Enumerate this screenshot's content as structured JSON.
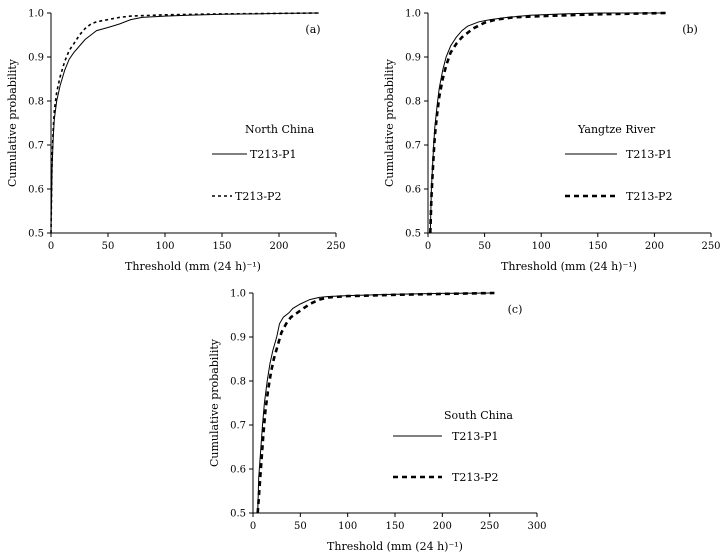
{
  "figure": {
    "panels": [
      {
        "id": "a",
        "panel_label": "(a)",
        "region": "North China",
        "xlabel": "Threshold (mm (24 h)⁻¹)",
        "ylabel": "Cumulative probability"
      },
      {
        "id": "b",
        "panel_label": "(b)",
        "region": "Yangtze River",
        "xlabel": "Threshold (mm (24 h)⁻¹)",
        "ylabel": "Cumulative probability"
      },
      {
        "id": "c",
        "panel_label": "(c)",
        "region": "South China",
        "xlabel": "Threshold (mm (24 h)⁻¹)",
        "ylabel": "Cumulative probability"
      }
    ],
    "legend": [
      {
        "key": "p1",
        "label": "T213-P1",
        "style": "solid"
      },
      {
        "key": "p2",
        "label": "T213-P2",
        "style": "dashed"
      }
    ]
  },
  "chart_data": [
    {
      "type": "line",
      "panel": "(a)",
      "title": "North China",
      "xlabel": "Threshold (mm (24 h)⁻¹)",
      "ylabel": "Cumulative probability",
      "xlim": [
        0,
        250
      ],
      "ylim": [
        0.5,
        1.0
      ],
      "xticks": [
        0,
        50,
        100,
        150,
        200,
        250
      ],
      "yticks": [
        0.5,
        0.6,
        0.7,
        0.8,
        0.9,
        1.0
      ],
      "series": [
        {
          "name": "T213-P1",
          "style": "solid",
          "points": [
            [
              0,
              0.5
            ],
            [
              0.5,
              0.58
            ],
            [
              1,
              0.65
            ],
            [
              2,
              0.72
            ],
            [
              3,
              0.76
            ],
            [
              5,
              0.8
            ],
            [
              8,
              0.835
            ],
            [
              12,
              0.87
            ],
            [
              16,
              0.895
            ],
            [
              20,
              0.91
            ],
            [
              25,
              0.925
            ],
            [
              30,
              0.94
            ],
            [
              35,
              0.95
            ],
            [
              40,
              0.96
            ],
            [
              50,
              0.967
            ],
            [
              60,
              0.975
            ],
            [
              70,
              0.985
            ],
            [
              80,
              0.99
            ],
            [
              100,
              0.993
            ],
            [
              120,
              0.995
            ],
            [
              150,
              0.997
            ],
            [
              180,
              0.998
            ],
            [
              200,
              0.999
            ],
            [
              235,
              1.0
            ]
          ]
        },
        {
          "name": "T213-P2",
          "style": "dashed",
          "points": [
            [
              0,
              0.5
            ],
            [
              0.5,
              0.6
            ],
            [
              1,
              0.67
            ],
            [
              2,
              0.74
            ],
            [
              3,
              0.78
            ],
            [
              5,
              0.82
            ],
            [
              8,
              0.855
            ],
            [
              12,
              0.89
            ],
            [
              16,
              0.915
            ],
            [
              20,
              0.93
            ],
            [
              25,
              0.95
            ],
            [
              30,
              0.965
            ],
            [
              35,
              0.975
            ],
            [
              40,
              0.98
            ],
            [
              50,
              0.985
            ],
            [
              60,
              0.99
            ],
            [
              70,
              0.993
            ],
            [
              100,
              0.996
            ],
            [
              150,
              0.998
            ],
            [
              200,
              0.999
            ],
            [
              235,
              1.0
            ]
          ]
        }
      ]
    },
    {
      "type": "line",
      "panel": "(b)",
      "title": "Yangtze River",
      "xlabel": "Threshold (mm (24 h)⁻¹)",
      "ylabel": "Cumulative probability",
      "xlim": [
        0,
        250
      ],
      "ylim": [
        0.5,
        1.0
      ],
      "xticks": [
        0,
        50,
        100,
        150,
        200,
        250
      ],
      "yticks": [
        0.5,
        0.6,
        0.7,
        0.8,
        0.9,
        1.0
      ],
      "series": [
        {
          "name": "T213-P1",
          "style": "solid",
          "points": [
            [
              2,
              0.5
            ],
            [
              3,
              0.6
            ],
            [
              4,
              0.65
            ],
            [
              5,
              0.7
            ],
            [
              6,
              0.74
            ],
            [
              8,
              0.79
            ],
            [
              10,
              0.83
            ],
            [
              13,
              0.87
            ],
            [
              16,
              0.9
            ],
            [
              20,
              0.925
            ],
            [
              25,
              0.945
            ],
            [
              30,
              0.96
            ],
            [
              35,
              0.97
            ],
            [
              45,
              0.98
            ],
            [
              55,
              0.985
            ],
            [
              70,
              0.99
            ],
            [
              90,
              0.995
            ],
            [
              120,
              0.998
            ],
            [
              150,
              1.0
            ],
            [
              210,
              1.0
            ]
          ]
        },
        {
          "name": "T213-P2",
          "style": "dashed",
          "points": [
            [
              2,
              0.5
            ],
            [
              3,
              0.58
            ],
            [
              4,
              0.63
            ],
            [
              5,
              0.68
            ],
            [
              6,
              0.72
            ],
            [
              8,
              0.77
            ],
            [
              10,
              0.81
            ],
            [
              13,
              0.85
            ],
            [
              16,
              0.88
            ],
            [
              20,
              0.91
            ],
            [
              25,
              0.93
            ],
            [
              30,
              0.945
            ],
            [
              40,
              0.965
            ],
            [
              50,
              0.978
            ],
            [
              60,
              0.985
            ],
            [
              75,
              0.99
            ],
            [
              100,
              0.993
            ],
            [
              150,
              0.997
            ],
            [
              210,
              1.0
            ]
          ]
        }
      ]
    },
    {
      "type": "line",
      "panel": "(c)",
      "title": "South China",
      "xlabel": "Threshold (mm (24 h)⁻¹)",
      "ylabel": "Cumulative probability",
      "xlim": [
        0,
        300
      ],
      "ylim": [
        0.5,
        1.0
      ],
      "xticks": [
        0,
        50,
        100,
        150,
        200,
        250,
        300
      ],
      "yticks": [
        0.5,
        0.6,
        0.7,
        0.8,
        0.9,
        1.0
      ],
      "series": [
        {
          "name": "T213-P1",
          "style": "solid",
          "points": [
            [
              5,
              0.5
            ],
            [
              6,
              0.58
            ],
            [
              8,
              0.64
            ],
            [
              10,
              0.7
            ],
            [
              12,
              0.75
            ],
            [
              15,
              0.8
            ],
            [
              18,
              0.84
            ],
            [
              21,
              0.87
            ],
            [
              25,
              0.9
            ],
            [
              28,
              0.93
            ],
            [
              32,
              0.945
            ],
            [
              38,
              0.955
            ],
            [
              42,
              0.965
            ],
            [
              50,
              0.975
            ],
            [
              60,
              0.985
            ],
            [
              70,
              0.99
            ],
            [
              80,
              0.992
            ],
            [
              100,
              0.994
            ],
            [
              150,
              0.997
            ],
            [
              200,
              0.999
            ],
            [
              255,
              1.0
            ]
          ]
        },
        {
          "name": "T213-P2",
          "style": "dashed",
          "points": [
            [
              5,
              0.5
            ],
            [
              7,
              0.56
            ],
            [
              9,
              0.62
            ],
            [
              11,
              0.68
            ],
            [
              13,
              0.73
            ],
            [
              16,
              0.78
            ],
            [
              19,
              0.82
            ],
            [
              22,
              0.85
            ],
            [
              26,
              0.88
            ],
            [
              30,
              0.91
            ],
            [
              35,
              0.93
            ],
            [
              40,
              0.945
            ],
            [
              50,
              0.96
            ],
            [
              60,
              0.975
            ],
            [
              70,
              0.985
            ],
            [
              80,
              0.99
            ],
            [
              100,
              0.993
            ],
            [
              150,
              0.996
            ],
            [
              200,
              0.998
            ],
            [
              255,
              1.0
            ]
          ]
        }
      ]
    }
  ]
}
